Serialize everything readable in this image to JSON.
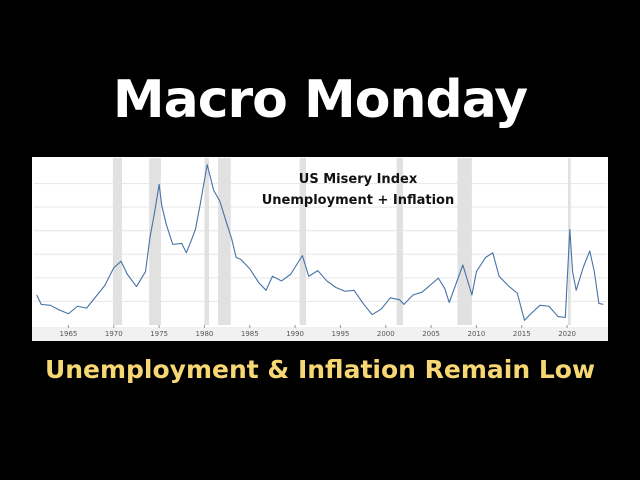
{
  "header": {
    "title": "Macro Monday",
    "caption": "Unemployment & Inflation Remain Low"
  },
  "chart_data": {
    "type": "line",
    "title": "US Misery Index",
    "subtitle": "Unemployment + Inflation",
    "x": [
      1961.5,
      1962,
      1963,
      1964,
      1965,
      1966,
      1967,
      1968,
      1969,
      1970,
      1970.8,
      1971.5,
      1972.5,
      1973.5,
      1974,
      1974.5,
      1975,
      1975.3,
      1975.8,
      1976.5,
      1977.5,
      1978,
      1978.5,
      1979,
      1979.5,
      1980.3,
      1980.8,
      1981,
      1981.7,
      1982.5,
      1983,
      1983.5,
      1984,
      1985,
      1986,
      1986.8,
      1987.5,
      1988.5,
      1989.5,
      1990.8,
      1991.5,
      1992.5,
      1993.5,
      1994.5,
      1995.5,
      1996.5,
      1997.5,
      1998.5,
      1999.5,
      2000.5,
      2001.5,
      2002,
      2003,
      2004,
      2005.8,
      2006.5,
      2007,
      2008.5,
      2009.5,
      2010,
      2011,
      2011.8,
      2012.5,
      2013.5,
      2014.5,
      2015.3,
      2016,
      2017,
      2018,
      2019,
      2019.8,
      2020.3,
      2020.6,
      2021,
      2021.8,
      2022.5,
      2023,
      2023.5,
      2024
    ],
    "series": [
      {
        "name": "US Misery Index",
        "color": "#4572a7",
        "values": [
          8.0,
          7.0,
          6.9,
          6.4,
          6.0,
          6.8,
          6.6,
          7.8,
          9.0,
          10.9,
          11.6,
          10.2,
          8.9,
          10.5,
          14.2,
          16.8,
          19.8,
          17.5,
          15.5,
          13.4,
          13.5,
          12.5,
          13.7,
          15.0,
          17.5,
          21.9,
          20.0,
          19.2,
          18.0,
          15.5,
          14.0,
          12.0,
          11.8,
          10.8,
          9.3,
          8.5,
          10.0,
          9.5,
          10.2,
          12.2,
          10.0,
          10.6,
          9.5,
          8.8,
          8.4,
          8.5,
          7.1,
          5.9,
          6.5,
          7.7,
          7.5,
          7.0,
          8.0,
          8.3,
          9.8,
          8.7,
          7.2,
          11.2,
          8.0,
          10.5,
          12.0,
          12.5,
          10.0,
          9.0,
          8.2,
          5.3,
          6.0,
          6.9,
          6.8,
          5.7,
          5.6,
          15.0,
          10.5,
          8.5,
          11.0,
          12.7,
          10.5,
          7.1,
          7.0
        ]
      }
    ],
    "recessions": [
      [
        1969.9,
        1970.9
      ],
      [
        1973.9,
        1975.2
      ],
      [
        1980.0,
        1980.5
      ],
      [
        1981.5,
        1982.9
      ],
      [
        1990.5,
        1991.2
      ],
      [
        2001.2,
        2001.9
      ],
      [
        2007.9,
        2009.5
      ],
      [
        2020.1,
        2020.4
      ]
    ],
    "recession_color": "#e1e1e1",
    "xlim": [
      1961.2,
      2024.4
    ],
    "ylim": [
      4.8,
      22.4
    ],
    "xticks": [
      1965,
      1970,
      1975,
      1980,
      1985,
      1990,
      1995,
      2000,
      2005,
      2010,
      2015,
      2020
    ],
    "grid": true
  }
}
